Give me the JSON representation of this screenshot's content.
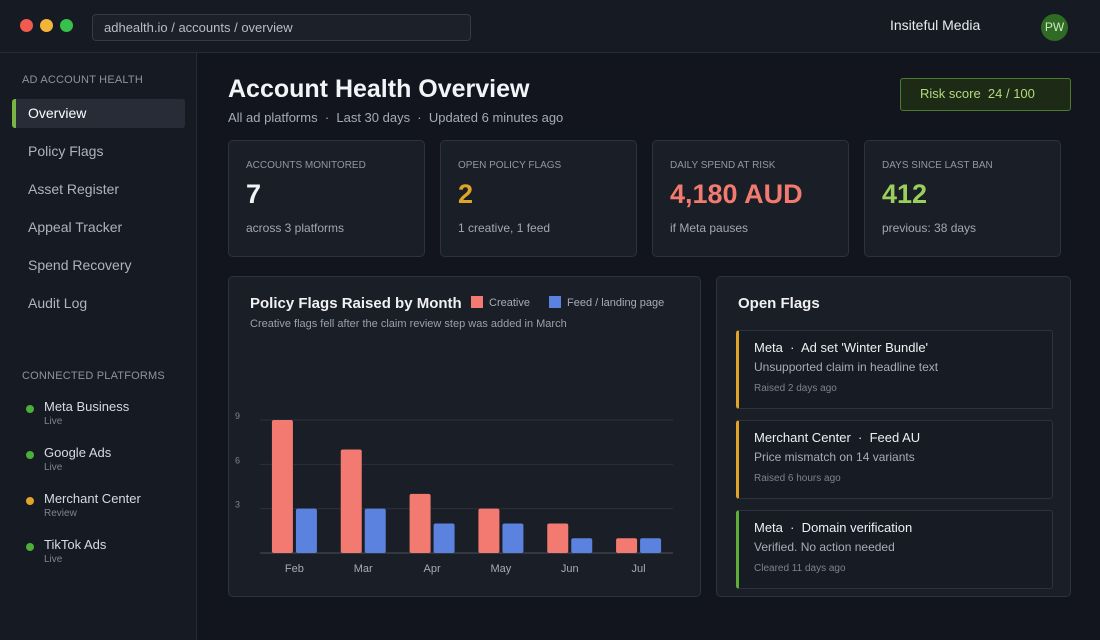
{
  "window": {
    "url": "adhealth.io / accounts / overview",
    "org_name": "Insiteful Media",
    "avatar_initials": "PW"
  },
  "sidebar": {
    "section_title": "AD ACCOUNT HEALTH",
    "nav": [
      {
        "label": "Overview",
        "active": true
      },
      {
        "label": "Policy Flags"
      },
      {
        "label": "Asset Register"
      },
      {
        "label": "Appeal Tracker"
      },
      {
        "label": "Spend Recovery"
      },
      {
        "label": "Audit Log"
      }
    ],
    "platforms_title": "CONNECTED PLATFORMS",
    "platforms": [
      {
        "name": "Meta Business",
        "status": "Live",
        "color": "#4caf3a"
      },
      {
        "name": "Google Ads",
        "status": "Live",
        "color": "#4caf3a"
      },
      {
        "name": "Merchant Center",
        "status": "Review",
        "color": "#e0a526"
      },
      {
        "name": "TikTok Ads",
        "status": "Live",
        "color": "#4caf3a"
      }
    ]
  },
  "header": {
    "title": "Account Health Overview",
    "subtitle": "All ad platforms  ·  Last 30 days  ·  Updated 6 minutes ago",
    "risk_score": "Risk score  24 / 100"
  },
  "stats": [
    {
      "label": "ACCOUNTS MONITORED",
      "value": "7",
      "sub": "across 3 platforms",
      "color": "#f3f4f7"
    },
    {
      "label": "OPEN POLICY FLAGS",
      "value": "2",
      "sub": "1 creative, 1 feed",
      "color": "#e0a526"
    },
    {
      "label": "DAILY SPEND AT RISK",
      "value": "4,180 AUD",
      "sub": "if Meta pauses",
      "color": "#f27a6e"
    },
    {
      "label": "DAYS SINCE LAST BAN",
      "value": "412",
      "sub": "previous: 38 days",
      "color": "#9bcf5b"
    }
  ],
  "chart_data": {
    "type": "bar",
    "title": "Policy Flags Raised by Month",
    "subtitle": "Creative flags fell after the claim review step was added in March",
    "categories": [
      "Feb",
      "Mar",
      "Apr",
      "May",
      "Jun",
      "Jul"
    ],
    "series": [
      {
        "name": "Creative",
        "values": [
          9,
          7,
          4,
          3,
          2,
          1
        ],
        "color": "#f37a70"
      },
      {
        "name": "Feed / landing page",
        "values": [
          3,
          3,
          2,
          2,
          1,
          1
        ],
        "color": "#5b82de"
      }
    ],
    "yticks": [
      "3",
      "6",
      "9"
    ],
    "ylim": [
      0,
      9
    ],
    "legend": "top-right",
    "grid": true
  },
  "open_flags": {
    "title": "Open Flags",
    "items": [
      {
        "title": "Meta  ·  Ad set 'Winter Bundle'",
        "desc": "Unsupported claim in headline text",
        "time": "Raised 2 days ago",
        "color": "#e0a526"
      },
      {
        "title": "Merchant Center  ·  Feed AU",
        "desc": "Price mismatch on 14 variants",
        "time": "Raised 6 hours ago",
        "color": "#e0a526"
      },
      {
        "title": "Meta  ·  Domain verification",
        "desc": "Verified. No action needed",
        "time": "Cleared 11 days ago",
        "color": "#5fae3a"
      }
    ]
  }
}
